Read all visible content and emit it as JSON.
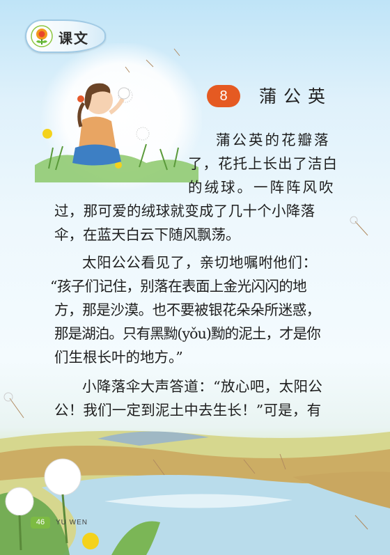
{
  "header": {
    "tab_label": "课文"
  },
  "lesson": {
    "number": "8",
    "title": "蒲公英"
  },
  "body": {
    "lines": [
      "蒲公英的花瓣落",
      "了，花托上长出了洁白",
      "的绒球。一阵阵风吹",
      "过，那可爱的绒球就变成了几十个小降落",
      "伞，在蓝天白云下随风飘荡。",
      "太阳公公看见了，亲切地嘱咐他们：",
      "“孩子们记住，别落在表面上金光闪闪的地",
      "方，那是沙漠。也不要被银花朵朵所迷惑，",
      "那是湖泊。只有黑黝(yǒu)黝的泥土，才是你",
      "们生根长叶的地方。”",
      "小降落伞大声答道：“放心吧，太阳公",
      "公！我们一定到泥土中去生长！”可是，有"
    ]
  },
  "footer": {
    "page_number": "46",
    "book_label": "YU WEN"
  }
}
